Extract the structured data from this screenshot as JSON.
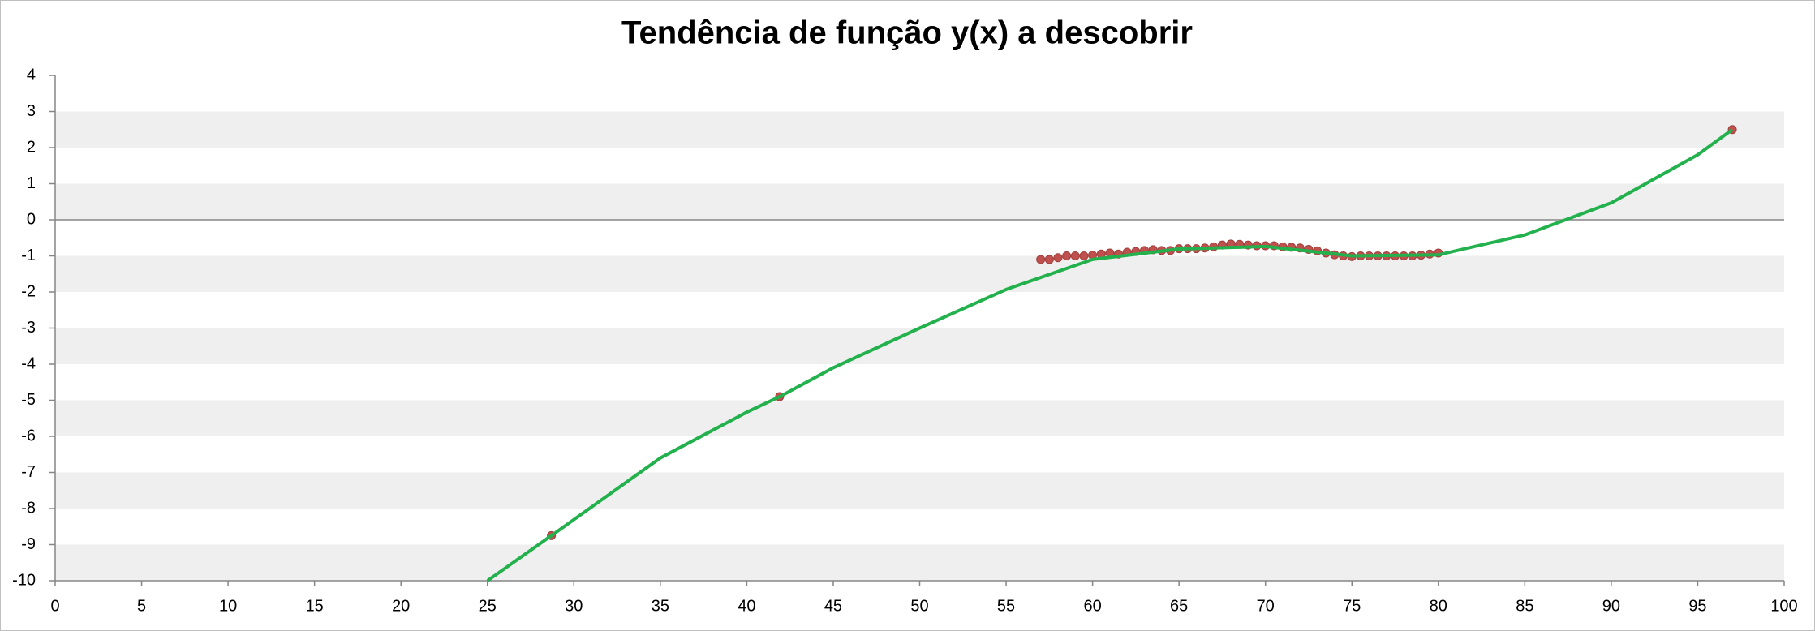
{
  "chart_data": {
    "type": "scatter",
    "title": "Tendência de função y(x) a descobrir",
    "xlim": [
      0,
      100
    ],
    "xticks": [
      0,
      5,
      10,
      15,
      20,
      25,
      30,
      35,
      40,
      45,
      50,
      55,
      60,
      65,
      70,
      75,
      80,
      85,
      90,
      95,
      100
    ],
    "ylim": [
      -10,
      4
    ],
    "yticks": [
      -10,
      -9,
      -8,
      -7,
      -6,
      -5,
      -4,
      -3,
      -2,
      -1,
      0,
      1,
      2,
      3,
      4
    ],
    "grid_bands": true,
    "series": [
      {
        "color": "#c0504d",
        "style": "markers",
        "x": [
          28.7,
          41.9,
          57,
          57.5,
          58,
          58.5,
          59,
          59.5,
          60,
          60.5,
          61,
          61.5,
          62,
          62.5,
          63,
          63.5,
          64,
          64.5,
          65,
          65.5,
          66,
          66.5,
          67,
          67.5,
          68,
          68.5,
          69,
          69.5,
          70,
          70.5,
          71,
          71.5,
          72,
          72.5,
          73,
          73.5,
          74,
          74.5,
          75,
          75.5,
          76,
          76.5,
          77,
          77.5,
          78,
          78.5,
          79,
          79.5,
          80,
          97
        ],
        "values": [
          -8.75,
          -4.9,
          -1.1,
          -1.1,
          -1.05,
          -1.0,
          -1.0,
          -1.0,
          -0.98,
          -0.95,
          -0.92,
          -0.95,
          -0.9,
          -0.88,
          -0.85,
          -0.83,
          -0.85,
          -0.85,
          -0.8,
          -0.8,
          -0.8,
          -0.78,
          -0.75,
          -0.7,
          -0.67,
          -0.68,
          -0.7,
          -0.72,
          -0.72,
          -0.72,
          -0.75,
          -0.76,
          -0.78,
          -0.82,
          -0.86,
          -0.92,
          -0.97,
          -1.0,
          -1.02,
          -1.0,
          -1.0,
          -1.0,
          -1.0,
          -1.0,
          -1.0,
          -1.0,
          -0.98,
          -0.95,
          -0.92,
          2.5
        ]
      },
      {
        "color": "#22b14c",
        "style": "line",
        "x": [
          25,
          28.7,
          35,
          40,
          41.9,
          45,
          50,
          55,
          60,
          65,
          70,
          75,
          80,
          85,
          90,
          95,
          97
        ],
        "values": [
          -10,
          -8.75,
          -6.6,
          -5.33,
          -4.9,
          -4.1,
          -3.0,
          -1.93,
          -1.1,
          -0.81,
          -0.74,
          -1.0,
          -0.97,
          -0.42,
          0.47,
          1.8,
          2.5
        ]
      }
    ]
  }
}
